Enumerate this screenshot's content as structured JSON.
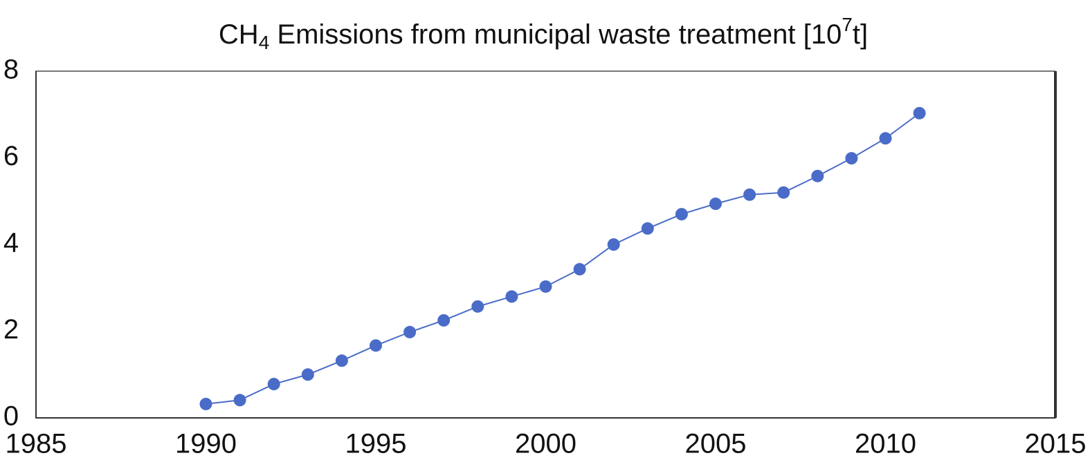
{
  "chart_data": {
    "type": "line",
    "title": [
      "CH",
      "4",
      " Emissions from municipal waste treatment [10",
      "7",
      "t]"
    ],
    "x": [
      1990,
      1991,
      1992,
      1993,
      1994,
      1995,
      1996,
      1997,
      1998,
      1999,
      2000,
      2001,
      2002,
      2003,
      2004,
      2005,
      2006,
      2007,
      2008,
      2009,
      2010,
      2011
    ],
    "series": [
      {
        "color": "#4a6cc8",
        "values": [
          0.32,
          0.41,
          0.78,
          1.0,
          1.32,
          1.67,
          1.98,
          2.25,
          2.57,
          2.8,
          3.03,
          3.43,
          4.0,
          4.37,
          4.7,
          4.94,
          5.15,
          5.2,
          5.58,
          5.99,
          6.45,
          7.03
        ]
      }
    ],
    "xlim": [
      1985,
      2015
    ],
    "xticks": [
      1985,
      1990,
      1995,
      2000,
      2005,
      2010,
      2015
    ],
    "ylim": [
      0,
      8
    ],
    "yticks": [
      0,
      2,
      4,
      6,
      8
    ]
  }
}
